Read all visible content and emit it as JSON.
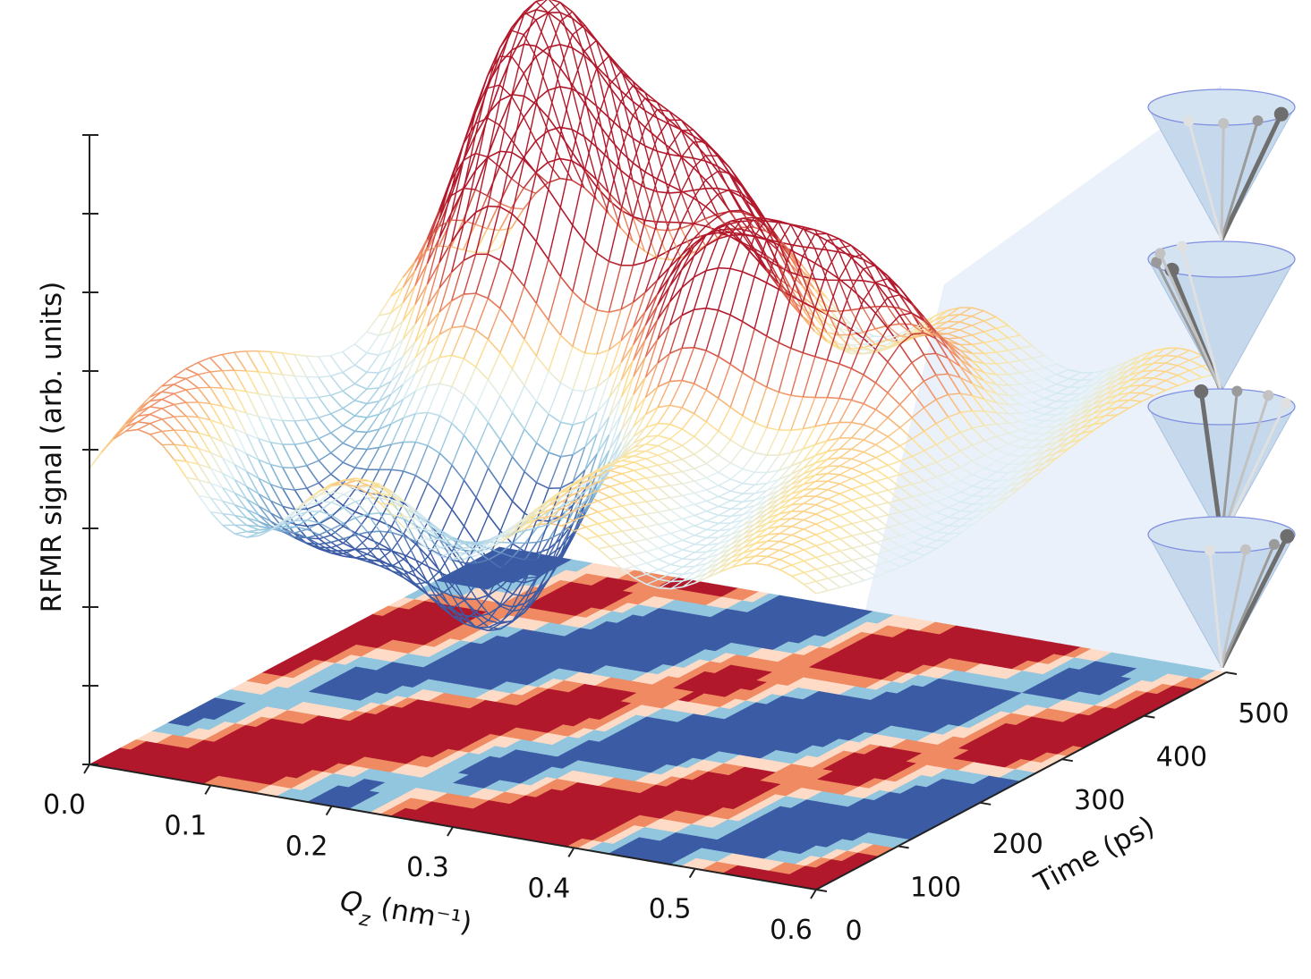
{
  "chart_data": {
    "type": "surface3d",
    "xlabel_prefix": "Q",
    "xlabel_sub": "z",
    "xlabel_units": " (nm⁻¹)",
    "ylabel": "Time (ps)",
    "zlabel": "RFMR signal (arb. units)",
    "x_ticks": [
      "0.0",
      "0.1",
      "0.2",
      "0.3",
      "0.4",
      "0.5",
      "0.6"
    ],
    "y_ticks": [
      "0",
      "100",
      "200",
      "300",
      "400",
      "500"
    ],
    "z_tick_count": 9,
    "xlim": [
      0.0,
      0.6
    ],
    "ylim": [
      0,
      500
    ],
    "wireframe_colormap": "red-yellow-blue (diverging)",
    "contour_projection": "floor",
    "inset": "precession cones (4)",
    "colors": {
      "red": "#b2182b",
      "orange": "#ef8a62",
      "cream": "#fddbc7",
      "light_blue": "#92c5de",
      "blue": "#3b5ba5",
      "cone_fill": "#c5d8ec",
      "panel_fill": "#e6eff8"
    }
  }
}
